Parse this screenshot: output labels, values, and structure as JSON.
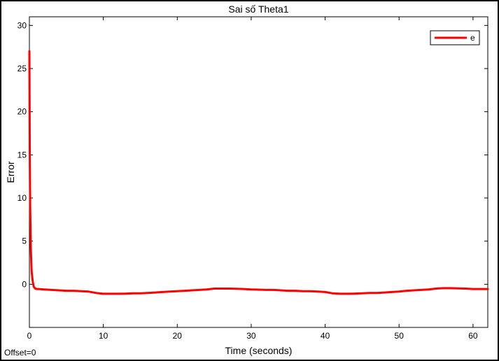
{
  "chart_data": {
    "type": "line",
    "title": "Sai số Theta1",
    "xlabel": "Time (seconds)",
    "ylabel": "Error",
    "xlim": [
      0,
      62
    ],
    "ylim": [
      -5,
      31
    ],
    "xticks": [
      0,
      10,
      20,
      30,
      40,
      50,
      60
    ],
    "yticks": [
      0,
      5,
      10,
      15,
      20,
      25,
      30
    ],
    "grid": false,
    "legend_position": "top-right",
    "series": [
      {
        "name": "e",
        "color": "#ff0000",
        "x": [
          0,
          0.05,
          0.1,
          0.2,
          0.3,
          0.45,
          0.6,
          0.8,
          1.0,
          1.3,
          2,
          3,
          4,
          5,
          6,
          7,
          8,
          9,
          10,
          11,
          12,
          13,
          14,
          15,
          16,
          17,
          18,
          19,
          20,
          21,
          22,
          23,
          24,
          25,
          26,
          27,
          28,
          29,
          30,
          31,
          32,
          33,
          34,
          35,
          36,
          37,
          38,
          39,
          40,
          41,
          42,
          43,
          44,
          45,
          46,
          47,
          48,
          49,
          50,
          51,
          52,
          53,
          54,
          55,
          56,
          57,
          58,
          59,
          60,
          61,
          62
        ],
        "y": [
          27,
          16,
          9,
          4,
          1.5,
          0.3,
          -0.3,
          -0.5,
          -0.55,
          -0.55,
          -0.6,
          -0.65,
          -0.7,
          -0.75,
          -0.75,
          -0.8,
          -0.85,
          -1.0,
          -1.1,
          -1.1,
          -1.1,
          -1.08,
          -1.05,
          -1.05,
          -1.0,
          -0.95,
          -0.9,
          -0.85,
          -0.8,
          -0.75,
          -0.7,
          -0.65,
          -0.6,
          -0.5,
          -0.5,
          -0.5,
          -0.52,
          -0.55,
          -0.6,
          -0.62,
          -0.65,
          -0.65,
          -0.7,
          -0.75,
          -0.75,
          -0.8,
          -0.8,
          -0.85,
          -0.9,
          -1.05,
          -1.1,
          -1.1,
          -1.08,
          -1.05,
          -1.0,
          -1.0,
          -0.95,
          -0.9,
          -0.85,
          -0.75,
          -0.7,
          -0.65,
          -0.6,
          -0.5,
          -0.45,
          -0.45,
          -0.48,
          -0.5,
          -0.55,
          -0.55,
          -0.55
        ]
      }
    ]
  },
  "offset_label": "Offset=0"
}
